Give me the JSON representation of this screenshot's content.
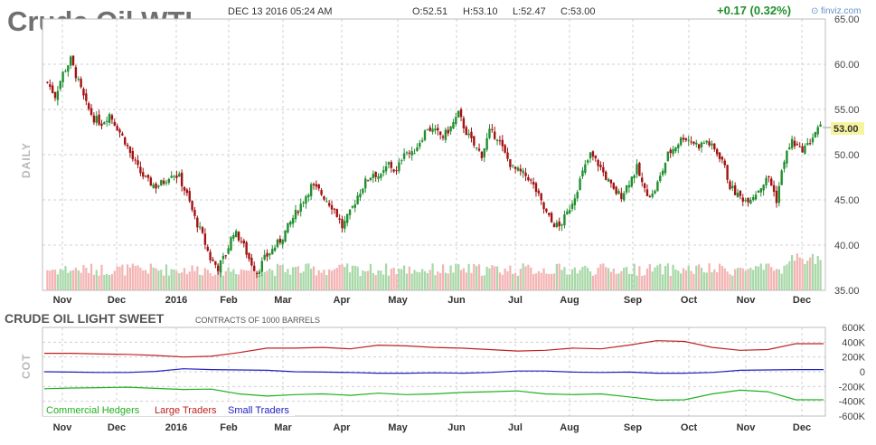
{
  "header": {
    "title": "Crude Oil WTI",
    "date": "DEC 13 2016 05:24 AM",
    "open": "O:52.51",
    "high": "H:53.10",
    "low": "L:52.47",
    "close": "C:53.00",
    "change": "+0.17 (0.32%)",
    "brand": "finviz.com",
    "last_price_label": "53.00"
  },
  "side_labels": {
    "price": "DAILY",
    "cot": "COT"
  },
  "cot": {
    "title": "CRUDE OIL LIGHT SWEET",
    "subtitle": "CONTRACTS OF 1000 BARRELS"
  },
  "colors": {
    "up": "#1f8f2f",
    "down": "#a31111",
    "volume_up": "#a8d8a8",
    "volume_down": "#f4b4b4",
    "commercial": "#20b020",
    "large": "#c02020",
    "small": "#2020c0",
    "highlight": "#f5f5a0",
    "grid": "#d0d0d0"
  },
  "chart_data": [
    {
      "type": "candlestick",
      "title": "Crude Oil WTI",
      "ylabel": "DAILY",
      "ylim": [
        35,
        65
      ],
      "yticks": [
        "35.00",
        "40.00",
        "45.00",
        "50.00",
        "55.00",
        "60.00",
        "65.00"
      ],
      "xticks": [
        "Nov",
        "Dec",
        "2016",
        "Feb",
        "Mar",
        "Apr",
        "May",
        "Jun",
        "Jul",
        "Aug",
        "Sep",
        "Oct",
        "Nov",
        "Dec"
      ],
      "last_price": 53.0,
      "approx_close_path": [
        [
          0,
          58.0
        ],
        [
          3,
          56.5
        ],
        [
          6,
          59.0
        ],
        [
          9,
          60.5
        ],
        [
          12,
          58.0
        ],
        [
          15,
          55.5
        ],
        [
          18,
          54.0
        ],
        [
          21,
          53.5
        ],
        [
          24,
          54.5
        ],
        [
          27,
          53.0
        ],
        [
          30,
          51.5
        ],
        [
          33,
          49.5
        ],
        [
          36,
          48.0
        ],
        [
          39,
          47.0
        ],
        [
          42,
          46.5
        ],
        [
          45,
          47.0
        ],
        [
          48,
          48.0
        ],
        [
          51,
          47.5
        ],
        [
          54,
          45.5
        ],
        [
          57,
          43.0
        ],
        [
          60,
          41.0
        ],
        [
          63,
          38.5
        ],
        [
          66,
          37.5
        ],
        [
          69,
          39.0
        ],
        [
          72,
          41.5
        ],
        [
          75,
          40.5
        ],
        [
          78,
          38.5
        ],
        [
          81,
          37.0
        ],
        [
          84,
          38.5
        ],
        [
          87,
          39.5
        ],
        [
          90,
          40.5
        ],
        [
          93,
          42.0
        ],
        [
          96,
          43.5
        ],
        [
          99,
          45.0
        ],
        [
          102,
          46.5
        ],
        [
          105,
          46.0
        ],
        [
          108,
          45.0
        ],
        [
          111,
          44.0
        ],
        [
          114,
          42.0
        ],
        [
          117,
          43.5
        ],
        [
          120,
          45.5
        ],
        [
          123,
          47.0
        ],
        [
          126,
          48.0
        ],
        [
          129,
          47.5
        ],
        [
          132,
          49.0
        ],
        [
          135,
          48.0
        ],
        [
          138,
          50.5
        ],
        [
          141,
          50.0
        ],
        [
          144,
          51.5
        ],
        [
          147,
          53.0
        ],
        [
          150,
          52.5
        ],
        [
          153,
          52.0
        ],
        [
          156,
          53.0
        ],
        [
          159,
          54.5
        ],
        [
          162,
          52.5
        ],
        [
          165,
          51.0
        ],
        [
          168,
          50.0
        ],
        [
          171,
          52.5
        ],
        [
          174,
          52.0
        ],
        [
          177,
          50.0
        ],
        [
          180,
          48.5
        ],
        [
          183,
          48.0
        ],
        [
          186,
          47.5
        ],
        [
          189,
          46.0
        ],
        [
          192,
          44.0
        ],
        [
          195,
          42.5
        ],
        [
          198,
          42.0
        ],
        [
          201,
          43.5
        ],
        [
          204,
          45.5
        ],
        [
          207,
          48.0
        ],
        [
          210,
          50.0
        ],
        [
          213,
          49.0
        ],
        [
          216,
          47.5
        ],
        [
          219,
          46.0
        ],
        [
          222,
          45.5
        ],
        [
          225,
          47.0
        ],
        [
          228,
          48.5
        ],
        [
          231,
          46.0
        ],
        [
          234,
          45.5
        ],
        [
          237,
          47.5
        ],
        [
          240,
          50.0
        ],
        [
          243,
          51.0
        ],
        [
          246,
          52.0
        ],
        [
          249,
          51.5
        ],
        [
          252,
          51.0
        ],
        [
          255,
          51.5
        ],
        [
          258,
          50.5
        ],
        [
          261,
          49.5
        ],
        [
          264,
          46.5
        ],
        [
          267,
          45.5
        ],
        [
          270,
          45.0
        ],
        [
          273,
          45.5
        ],
        [
          276,
          46.5
        ],
        [
          279,
          47.5
        ],
        [
          282,
          45.0
        ],
        [
          285,
          49.5
        ],
        [
          288,
          51.5
        ],
        [
          291,
          50.5
        ],
        [
          294,
          51.0
        ],
        [
          297,
          52.5
        ],
        [
          299,
          53.0
        ]
      ]
    },
    {
      "type": "line",
      "title": "CRUDE OIL LIGHT SWEET",
      "ylim": [
        -600,
        600
      ],
      "yticks": [
        "600K",
        "400K",
        "200K",
        "0",
        "-200K",
        "-400K",
        "-600K"
      ],
      "xticks": [
        "Nov",
        "Dec",
        "2016",
        "Feb",
        "Mar",
        "Apr",
        "May",
        "Jun",
        "Jul",
        "Aug",
        "Sep",
        "Oct",
        "Nov",
        "Dec"
      ],
      "series": [
        {
          "name": "Commercial Hedgers",
          "values": [
            -230,
            -220,
            -215,
            -210,
            -225,
            -240,
            -235,
            -300,
            -330,
            -310,
            -300,
            -320,
            -290,
            -310,
            -300,
            -280,
            -270,
            -260,
            -300,
            -310,
            -300,
            -340,
            -385,
            -380,
            -300,
            -250,
            -270,
            -380,
            -380
          ]
        },
        {
          "name": "Large Traders",
          "values": [
            250,
            250,
            240,
            235,
            220,
            200,
            210,
            260,
            320,
            320,
            330,
            310,
            360,
            350,
            330,
            320,
            300,
            280,
            290,
            320,
            310,
            360,
            420,
            410,
            330,
            290,
            300,
            380,
            380
          ]
        },
        {
          "name": "Small Traders",
          "values": [
            0,
            -5,
            -10,
            -10,
            5,
            40,
            30,
            25,
            20,
            0,
            -5,
            -10,
            -20,
            -20,
            -15,
            -20,
            -10,
            10,
            10,
            -5,
            -10,
            -5,
            -20,
            -20,
            -10,
            20,
            25,
            30,
            30
          ]
        }
      ]
    }
  ]
}
